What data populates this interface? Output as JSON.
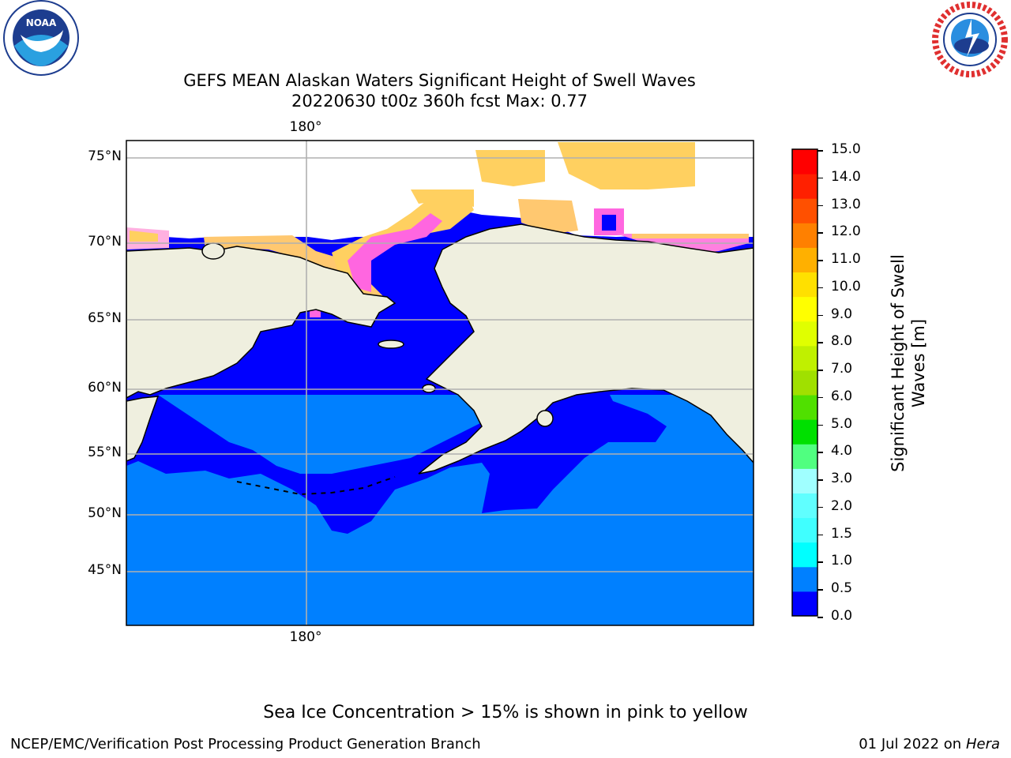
{
  "title": {
    "line1": "GEFS MEAN Alaskan Waters Significant Height of Swell Waves",
    "line2": "20220630 t00z 360h fcst   Max: 0.77"
  },
  "logos": {
    "left": {
      "text": "NOAA",
      "ring_text": "NATIONAL OCEANIC AND ATMOSPHERIC ADMINISTRATION · U.S. DEPARTMENT OF COMMERCE"
    },
    "right": {
      "ring_text": "NATIONAL WEATHER SERVICE"
    }
  },
  "map": {
    "lat_labels": [
      "75°N",
      "70°N",
      "65°N",
      "60°N",
      "55°N",
      "50°N",
      "45°N"
    ],
    "lon_label_top": "180°",
    "lon_label_bottom": "180°",
    "colors": {
      "land": "#efefdf",
      "water_low": "#0000ff",
      "water_mid": "#0080ff",
      "ice_pink": "#ff55ee",
      "ice_yellow": "#ffd050",
      "grid": "#b0b0b0"
    }
  },
  "colorbar": {
    "label_line1": "Significant Height of Swell",
    "label_line2": "Waves [m]",
    "ticks": [
      "15.0",
      "14.0",
      "13.0",
      "12.0",
      "11.0",
      "10.0",
      "9.0",
      "8.0",
      "7.0",
      "6.0",
      "5.0",
      "4.0",
      "3.0",
      "2.0",
      "1.5",
      "1.0",
      "0.5",
      "0.0"
    ],
    "colors_bottom_to_top": [
      "#0000ff",
      "#0080ff",
      "#00ffff",
      "#40ffff",
      "#60ffff",
      "#a0ffff",
      "#50ff80",
      "#00e000",
      "#50e000",
      "#a0e000",
      "#c0f000",
      "#e0ff00",
      "#ffff00",
      "#ffe000",
      "#ffb000",
      "#ff8000",
      "#ff5000",
      "#ff2000",
      "#ff0000"
    ]
  },
  "note": "Sea Ice Concentration > 15% is shown in pink to yellow",
  "footer": {
    "left": "NCEP/EMC/Verification Post Processing Product Generation Branch",
    "right_prefix": "01 Jul 2022 on ",
    "right_host": "Hera"
  }
}
